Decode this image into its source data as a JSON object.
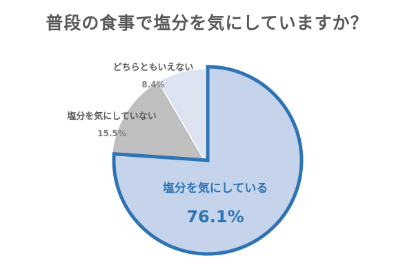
{
  "title": "普段の食事で塩分を気にしていますか？",
  "chart_data": {
    "type": "pie",
    "slices": [
      {
        "label": "塩分を気にしている",
        "value": 76.1,
        "value_label": "76.1%",
        "color": "#c5d4eb",
        "stroke": "#2e74b5",
        "exploded": true
      },
      {
        "label": "塩分を気にしていない",
        "value": 15.5,
        "value_label": "15.5%",
        "color": "#bfbfbf",
        "stroke": "#ffffff",
        "exploded": false
      },
      {
        "label": "どちらともいえない",
        "value": 8.4,
        "value_label": "8.4%",
        "color": "#dde3f0",
        "stroke": "#ffffff",
        "exploded": false
      }
    ],
    "start_angle_deg": 0,
    "direction": "clockwise"
  }
}
